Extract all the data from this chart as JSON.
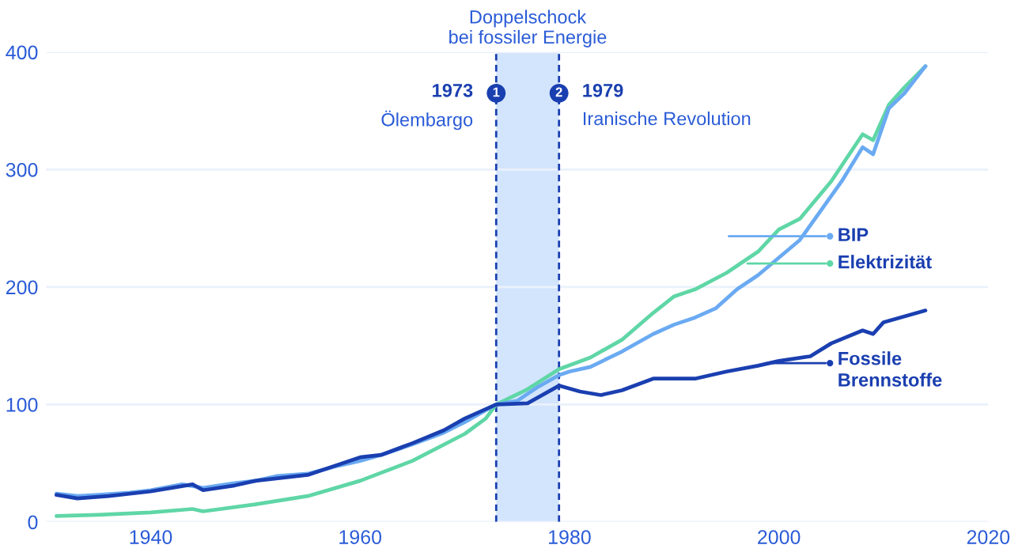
{
  "chart_data": {
    "type": "line",
    "series": [
      {
        "name": "BIP",
        "color": "#6aaaf2",
        "x": [
          1931,
          1933,
          1935,
          1938,
          1940,
          1943,
          1945,
          1948,
          1950,
          1952,
          1955,
          1958,
          1960,
          1962,
          1965,
          1968,
          1970,
          1972,
          1973,
          1975,
          1977,
          1979,
          1980,
          1982,
          1985,
          1988,
          1990,
          1992,
          1994,
          1996,
          1998,
          2000,
          2002,
          2004,
          2006,
          2008,
          2009,
          2010.5,
          2012,
          2014
        ],
        "values": [
          24,
          22,
          23,
          25,
          27,
          32,
          29,
          33,
          35,
          39,
          41,
          48,
          52,
          57,
          66,
          76,
          85,
          95,
          100,
          103,
          115,
          125,
          128,
          132,
          145,
          160,
          168,
          174,
          182,
          198,
          210,
          225,
          240,
          265,
          290,
          319,
          313,
          352,
          365,
          388
        ]
      },
      {
        "name": "Elektrizität",
        "color": "#5fd6a6",
        "x": [
          1931,
          1935,
          1940,
          1944,
          1945,
          1950,
          1955,
          1960,
          1965,
          1970,
          1972,
          1973,
          1976,
          1979,
          1982,
          1985,
          1988,
          1990,
          1992,
          1995,
          1998,
          2000,
          2002,
          2005,
          2008,
          2009,
          2010.5,
          2012,
          2014
        ],
        "values": [
          5,
          6,
          8,
          11,
          9,
          15,
          22,
          35,
          52,
          75,
          88,
          100,
          113,
          130,
          140,
          155,
          178,
          192,
          198,
          212,
          230,
          249,
          258,
          290,
          330,
          325,
          355,
          370,
          388
        ]
      },
      {
        "name": "Fossile Brennstoffe",
        "color": "#1a3fb0",
        "x": [
          1931,
          1933,
          1936,
          1940,
          1944,
          1945,
          1948,
          1950,
          1955,
          1960,
          1962,
          1965,
          1968,
          1970,
          1973,
          1976,
          1979,
          1981,
          1983,
          1985,
          1988,
          1990,
          1992,
          1995,
          1998,
          2000,
          2003,
          2005,
          2008,
          2009,
          2010,
          2012,
          2014
        ],
        "values": [
          23,
          20,
          22,
          26,
          32,
          27,
          31,
          35,
          40,
          55,
          57,
          67,
          78,
          88,
          100,
          101,
          116,
          111,
          108,
          112,
          122,
          122,
          122,
          128,
          133,
          137,
          141,
          152,
          163,
          160,
          170,
          175,
          180
        ]
      }
    ],
    "xlim": [
      1930,
      2020
    ],
    "xticks": [
      1940,
      1960,
      1980,
      2000,
      2020
    ],
    "ylim": [
      0,
      400
    ],
    "yticks": [
      0,
      100,
      200,
      300,
      400
    ],
    "grid": "y",
    "legend": "right",
    "bands": [
      {
        "axis": "x",
        "from": 1973,
        "to": 1979,
        "label": "Doppelschock\nbei fossiler Energie",
        "color": "#d3e5fc"
      }
    ],
    "ref_lines": [
      {
        "axis": "x",
        "value": 1973,
        "label": "1973\nÖlembargo",
        "color": "#1a3fb0",
        "line_style": "dashed"
      },
      {
        "axis": "x",
        "value": 1979,
        "label": "1979\nIranische Revolution",
        "color": "#1a3fb0",
        "line_style": "dashed"
      }
    ],
    "annotations": [
      {
        "text": "1",
        "x": 1973,
        "y": 365
      },
      {
        "text": "2",
        "x": 1979,
        "y": 365
      }
    ]
  }
}
